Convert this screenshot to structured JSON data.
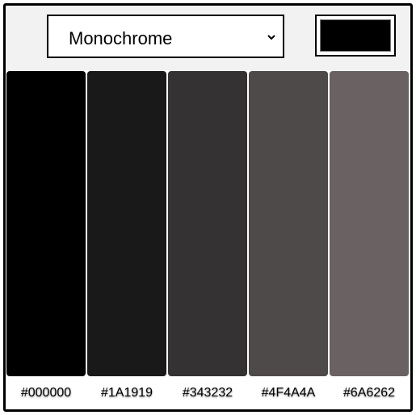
{
  "scheme_select": {
    "value": "Monochrome",
    "icon": "chevron-down-icon"
  },
  "color_picker": {
    "value": "#000000"
  },
  "palette": {
    "colors": [
      {
        "hex": "#000000"
      },
      {
        "hex": "#1A1919"
      },
      {
        "hex": "#343232"
      },
      {
        "hex": "#4F4A4A"
      },
      {
        "hex": "#6A6262"
      }
    ]
  }
}
